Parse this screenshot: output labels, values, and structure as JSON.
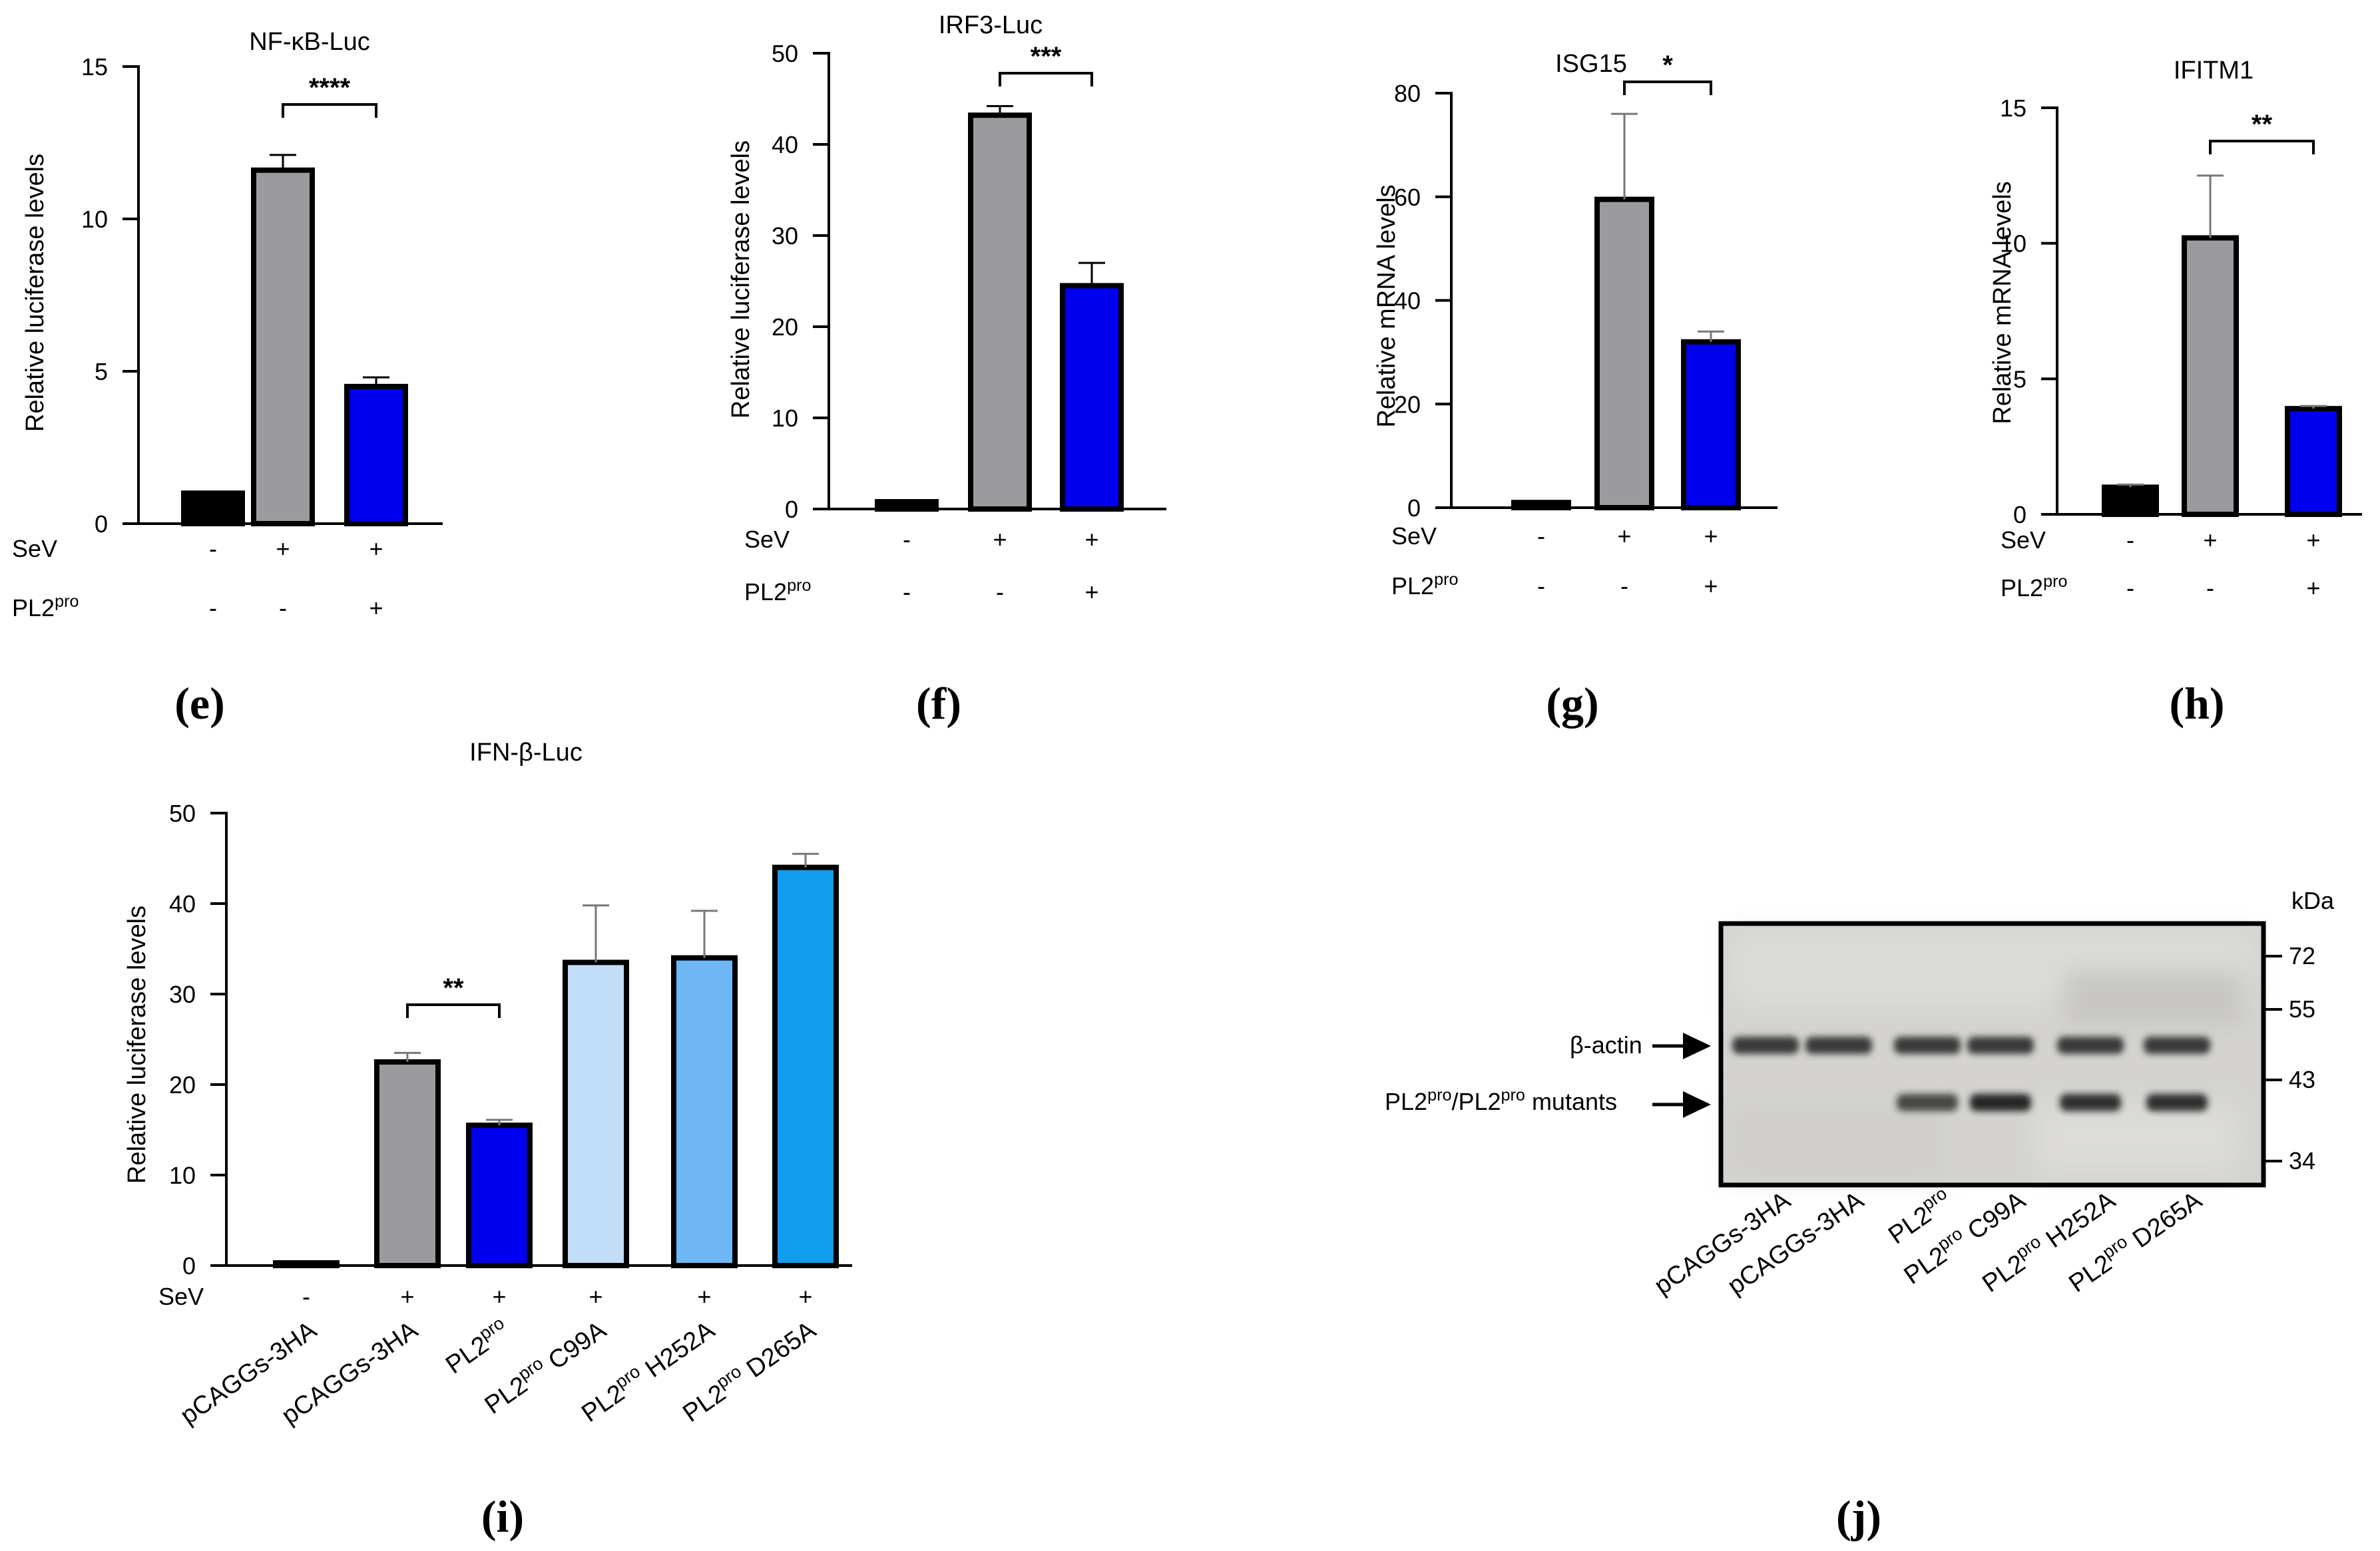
{
  "colors": {
    "black": "#000000",
    "grey": "#9b9b9f",
    "blue": "#0000ee",
    "light_blue_1": "#c2ddf7",
    "light_blue_2": "#6fb8f6",
    "light_blue_3": "#109dec"
  },
  "chart_data": [
    {
      "id": "e",
      "type": "bar",
      "panel_label": "(e)",
      "title": "NF-κB-Luc",
      "ylabel": "Relative luciferase levels",
      "ylim": [
        0,
        15
      ],
      "yticks": [
        0,
        5,
        10,
        15
      ],
      "values": [
        1.0,
        11.6,
        4.5
      ],
      "errors": [
        0.0,
        0.5,
        0.3
      ],
      "colors": [
        "#000000",
        "#9b9b9f",
        "#0000ee"
      ],
      "rows": [
        {
          "label": "SeV",
          "marks": [
            "-",
            "+",
            "+"
          ]
        },
        {
          "label": "PL2pro",
          "marks": [
            "-",
            "-",
            "+"
          ]
        }
      ],
      "significance": {
        "from": 1,
        "to": 2,
        "label": "****"
      }
    },
    {
      "id": "f",
      "type": "bar",
      "panel_label": "(f)",
      "title": "IRF3-Luc",
      "ylabel": "Relative luciferase levels",
      "ylim": [
        0,
        50
      ],
      "yticks": [
        0,
        10,
        20,
        30,
        40,
        50
      ],
      "values": [
        0.8,
        43.2,
        24.5
      ],
      "errors": [
        0.0,
        1.0,
        2.5
      ],
      "colors": [
        "#000000",
        "#9b9b9f",
        "#0000ee"
      ],
      "rows": [
        {
          "label": "SeV",
          "marks": [
            "-",
            "+",
            "+"
          ]
        },
        {
          "label": "PL2pro",
          "marks": [
            "-",
            "-",
            "+"
          ]
        }
      ],
      "significance": {
        "from": 1,
        "to": 2,
        "label": "***"
      }
    },
    {
      "id": "g",
      "type": "bar",
      "panel_label": "(g)",
      "title": "ISG15",
      "ylabel": "Relative mRNA levels",
      "ylim": [
        0,
        80
      ],
      "yticks": [
        0,
        20,
        40,
        60,
        80
      ],
      "values": [
        1.0,
        59.5,
        32.0
      ],
      "errors": [
        0.0,
        16.5,
        2.0
      ],
      "colors": [
        "#000000",
        "#9b9b9f",
        "#0000ee"
      ],
      "rows": [
        {
          "label": "SeV",
          "marks": [
            "-",
            "+",
            "+"
          ]
        },
        {
          "label": "PL2pro",
          "marks": [
            "-",
            "-",
            "+"
          ]
        }
      ],
      "significance": {
        "from": 1,
        "to": 2,
        "label": "*"
      }
    },
    {
      "id": "h",
      "type": "bar",
      "panel_label": "(h)",
      "title": "IFITM1",
      "ylabel": "Relative mRNA levels",
      "ylim": [
        0,
        15
      ],
      "yticks": [
        0,
        5,
        10,
        15
      ],
      "values": [
        1.0,
        10.2,
        3.9
      ],
      "errors": [
        0.1,
        2.3,
        0.1
      ],
      "colors": [
        "#000000",
        "#9b9b9f",
        "#0000ee"
      ],
      "rows": [
        {
          "label": "SeV",
          "marks": [
            "-",
            "+",
            "+"
          ]
        },
        {
          "label": "PL2pro",
          "marks": [
            "-",
            "-",
            "+"
          ]
        }
      ],
      "significance": {
        "from": 1,
        "to": 2,
        "label": "**"
      }
    },
    {
      "id": "i",
      "type": "bar",
      "panel_label": "(i)",
      "title": "IFN-β-Luc",
      "ylabel": "Relative luciferase levels",
      "ylim": [
        0,
        50
      ],
      "yticks": [
        0,
        10,
        20,
        30,
        40,
        50
      ],
      "categories": [
        "pCAGGs-3HA",
        "pCAGGs-3HA",
        "PL2pro",
        "PL2pro C99A",
        "PL2pro H252A",
        "PL2pro D265A"
      ],
      "values": [
        0.3,
        22.5,
        15.5,
        33.5,
        34.0,
        44.0
      ],
      "errors": [
        0.0,
        1.0,
        0.6,
        6.3,
        5.2,
        1.5
      ],
      "colors": [
        "#000000",
        "#9b9b9f",
        "#0000ee",
        "#c2ddf7",
        "#6fb8f6",
        "#109dec"
      ],
      "rows": [
        {
          "label": "SeV",
          "marks": [
            "-",
            "+",
            "+",
            "+",
            "+",
            "+"
          ]
        }
      ],
      "significance": {
        "from": 1,
        "to": 2,
        "label": "**"
      }
    }
  ],
  "blot": {
    "panel_label": "(j)",
    "unit": "kDa",
    "markers": [
      "72",
      "55",
      "43",
      "34"
    ],
    "band_labels": [
      "β-actin",
      "PL2pro/PL2pro mutants"
    ],
    "lanes": [
      "pCAGGs-3HA",
      "pCAGGs-3HA",
      "PL2pro",
      "PL2pro C99A",
      "PL2pro H252A",
      "PL2pro D265A"
    ],
    "pro_band_intensity": [
      0,
      0,
      0.75,
      0.95,
      0.9,
      0.9
    ]
  }
}
